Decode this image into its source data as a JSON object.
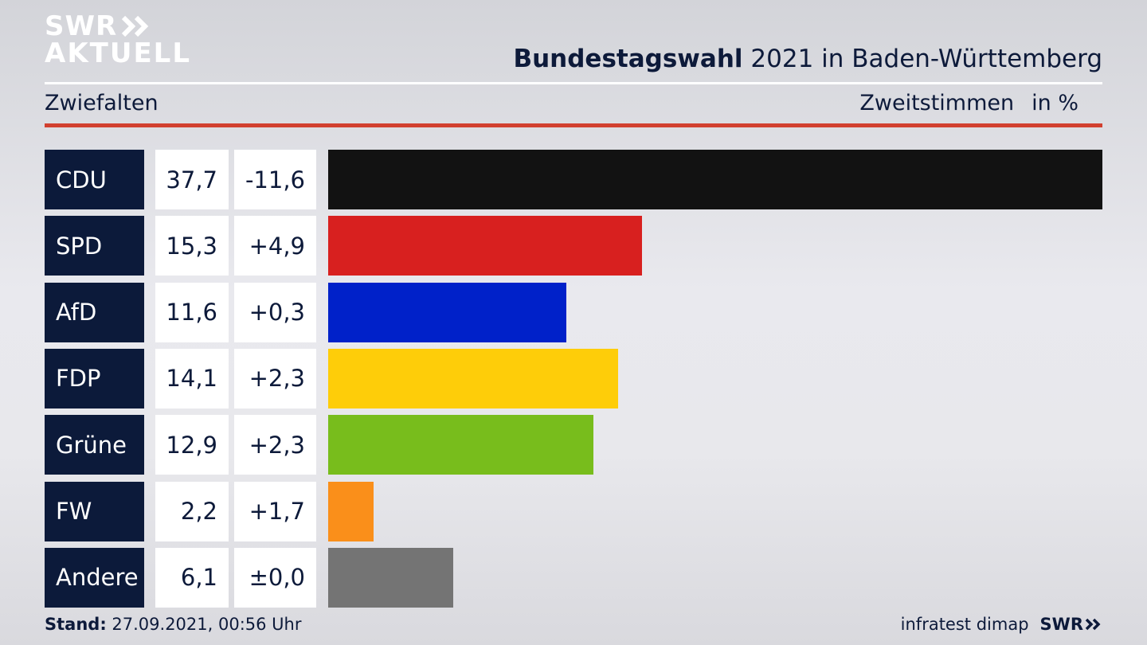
{
  "brand": {
    "logo_line1": "SWR",
    "logo_line2": "AKTUELL",
    "footer_logo": "SWR"
  },
  "header": {
    "title_bold": "Bundestagswahl",
    "title_rest": " 2021 in Baden-Württemberg",
    "region": "Zwiefalten",
    "vote_type": "Zweitstimmen",
    "unit": "in %"
  },
  "footer": {
    "stand_label": "Stand:",
    "stand_value": " 27.09.2021, 00:56 Uhr",
    "source": "infratest dimap"
  },
  "chart_data": {
    "type": "bar",
    "orientation": "horizontal",
    "categories": [
      "CDU",
      "SPD",
      "AfD",
      "FDP",
      "Grüne",
      "FW",
      "Andere"
    ],
    "values": [
      37.7,
      15.3,
      11.6,
      14.1,
      12.9,
      2.2,
      6.1
    ],
    "value_labels": [
      "37,7",
      "15,3",
      "11,6",
      "14,1",
      "12,9",
      "2,2",
      "6,1"
    ],
    "change_labels": [
      "-11,6",
      "+4,9",
      "+0,3",
      "+2,3",
      "+2,3",
      "+1,7",
      "±0,0"
    ],
    "colors": [
      "#121212",
      "#d8201f",
      "#0021c9",
      "#fecd09",
      "#78bd1c",
      "#fa8f1a",
      "#747474"
    ],
    "xlim": [
      0,
      37.7
    ],
    "grid": false,
    "legend": "none"
  }
}
